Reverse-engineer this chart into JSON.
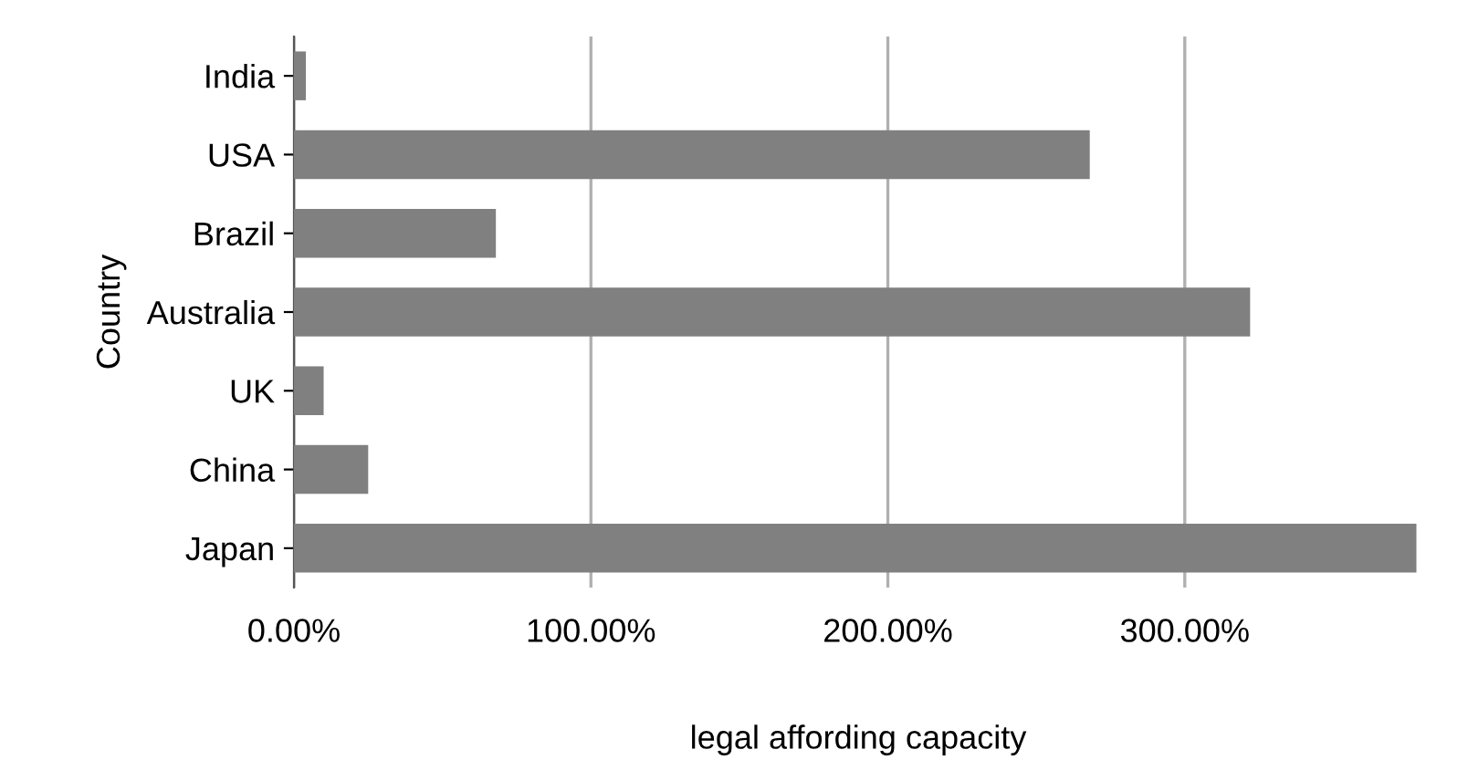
{
  "chart_data": {
    "type": "bar",
    "orientation": "horizontal",
    "xlabel": "legal affording capacity",
    "ylabel": "Country",
    "categories": [
      "India",
      "USA",
      "Brazil",
      "Australia",
      "UK",
      "China",
      "Japan"
    ],
    "values": [
      4,
      268,
      68,
      322,
      10,
      25,
      378
    ],
    "color": "#808080",
    "xlim": [
      0,
      380
    ],
    "xticks": [
      {
        "value": 0,
        "label": "0.00%"
      },
      {
        "value": 100,
        "label": "100.00%"
      },
      {
        "value": 200,
        "label": "200.00%"
      },
      {
        "value": 300,
        "label": "300.00%"
      }
    ],
    "grid": "x"
  }
}
